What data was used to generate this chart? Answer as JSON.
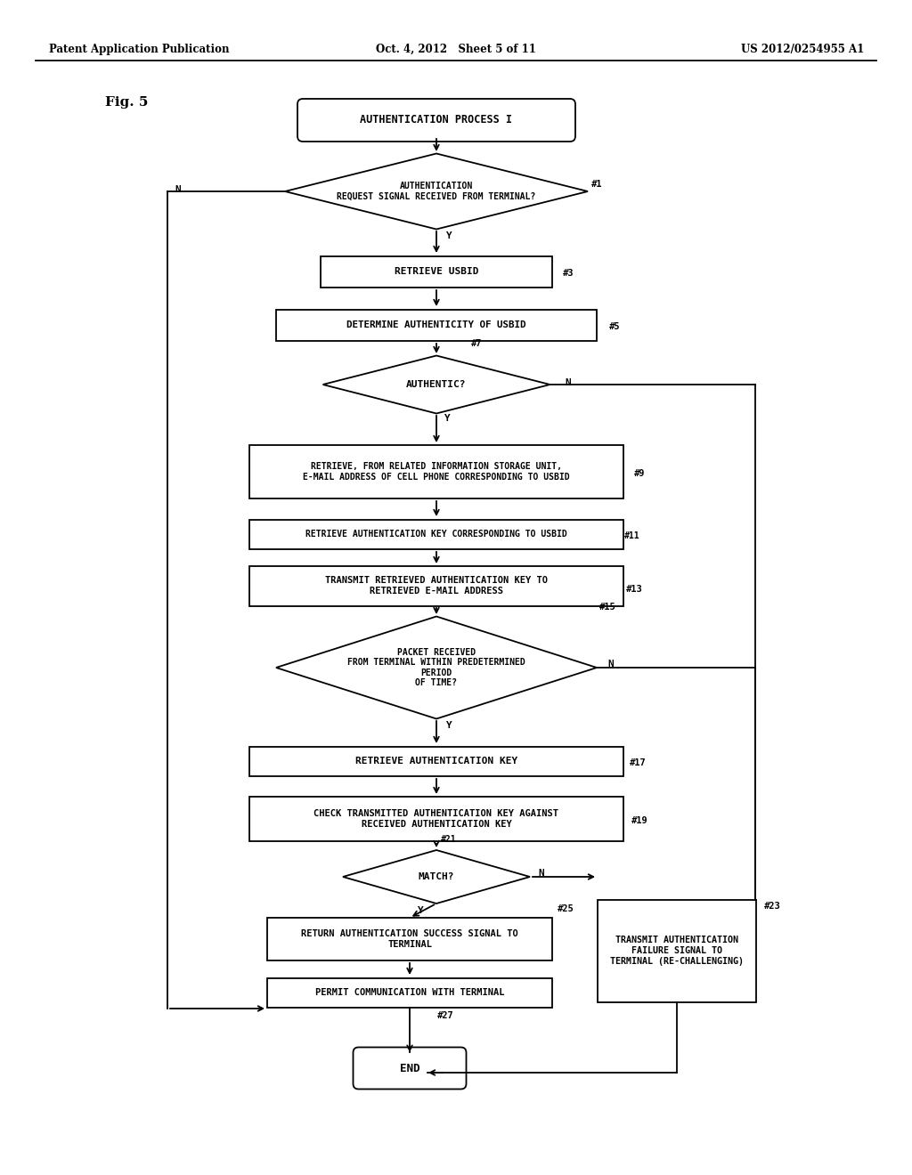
{
  "header_left": "Patent Application Publication",
  "header_mid": "Oct. 4, 2012   Sheet 5 of 11",
  "header_right": "US 2012/0254955 A1",
  "fig_label": "Fig. 5",
  "bg_color": "#ffffff",
  "line_color": "#000000",
  "text_color": "#000000"
}
